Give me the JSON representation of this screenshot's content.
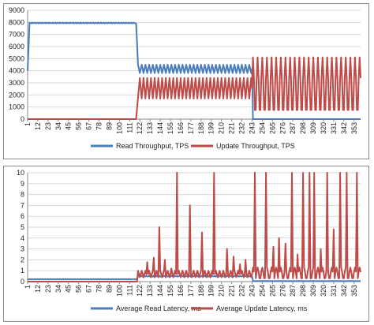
{
  "chart_data": [
    {
      "type": "line",
      "title": "",
      "xlabel": "",
      "ylabel": "",
      "x_tick_labels": [
        "1",
        "12",
        "23",
        "34",
        "45",
        "56",
        "67",
        "78",
        "89",
        "100",
        "111",
        "122",
        "133",
        "144",
        "155",
        "166",
        "177",
        "188",
        "199",
        "210",
        "221",
        "232",
        "243",
        "254",
        "265",
        "276",
        "287",
        "298",
        "309",
        "320",
        "331",
        "342",
        "353"
      ],
      "x_range": [
        1,
        360
      ],
      "ylim": [
        0,
        9000
      ],
      "y_ticks": [
        0,
        1000,
        2000,
        3000,
        4000,
        5000,
        6000,
        7000,
        8000,
        9000
      ],
      "grid": "horizontal",
      "legend_position": "bottom",
      "segments": [
        {
          "series": 0,
          "from": 1,
          "to": 3,
          "pattern": "ramp",
          "base": 4000,
          "peak": 7800
        },
        {
          "series": 0,
          "from": 3,
          "to": 118,
          "pattern": "flat",
          "value": 7950,
          "jitter": 40
        },
        {
          "series": 0,
          "from": 118,
          "to": 120,
          "pattern": "ramp",
          "base": 7900,
          "peak": 4700
        },
        {
          "series": 0,
          "from": 120,
          "to": 244,
          "pattern": "oscillate",
          "low": 3800,
          "high": 4500,
          "period": 4
        },
        {
          "series": 0,
          "from": 244,
          "to": 360,
          "pattern": "flat",
          "value": 0,
          "jitter": 0
        },
        {
          "series": 1,
          "from": 1,
          "to": 118,
          "pattern": "flat",
          "value": 0,
          "jitter": 0
        },
        {
          "series": 1,
          "from": 118,
          "to": 122,
          "pattern": "ramp",
          "base": 0,
          "peak": 3500
        },
        {
          "series": 1,
          "from": 122,
          "to": 244,
          "pattern": "oscillate",
          "low": 1700,
          "high": 3400,
          "period": 4
        },
        {
          "series": 1,
          "from": 244,
          "to": 360,
          "pattern": "oscillate",
          "low": 300,
          "high": 5100,
          "period": 5
        }
      ],
      "series": [
        {
          "name": "Read Throughput, TPS",
          "color": "#4a7ebb"
        },
        {
          "name": "Update Throughput, TPS",
          "color": "#be4b48"
        }
      ]
    },
    {
      "type": "line",
      "title": "",
      "xlabel": "",
      "ylabel": "",
      "x_tick_labels": [
        "1",
        "12",
        "23",
        "34",
        "45",
        "56",
        "67",
        "78",
        "89",
        "100",
        "111",
        "122",
        "133",
        "144",
        "155",
        "166",
        "177",
        "188",
        "199",
        "210",
        "221",
        "232",
        "243",
        "254",
        "265",
        "276",
        "287",
        "298",
        "309",
        "320",
        "331",
        "342",
        "353"
      ],
      "x_range": [
        1,
        360
      ],
      "ylim": [
        0,
        10
      ],
      "y_ticks": [
        0,
        1,
        2,
        3,
        4,
        5,
        6,
        7,
        8,
        9,
        10
      ],
      "grid": "horizontal",
      "legend_position": "bottom",
      "segments": [
        {
          "series": 0,
          "from": 1,
          "to": 120,
          "pattern": "flat",
          "value": 0.22,
          "jitter": 0.02
        },
        {
          "series": 0,
          "from": 120,
          "to": 244,
          "pattern": "flat",
          "value": 0.5,
          "jitter": 0.05
        },
        {
          "series": 0,
          "from": 244,
          "to": 360,
          "pattern": "flat",
          "value": 0.05,
          "jitter": 0.01
        },
        {
          "series": 1,
          "from": 1,
          "to": 120,
          "pattern": "flat",
          "value": 0,
          "jitter": 0
        },
        {
          "series": 1,
          "from": 120,
          "to": 244,
          "pattern": "oscillate",
          "low": 0.4,
          "high": 1.0,
          "period": 4
        },
        {
          "series": 1,
          "from": 244,
          "to": 360,
          "pattern": "oscillate",
          "low": 0.2,
          "high": 1.3,
          "period": 5
        }
      ],
      "spikes": [
        {
          "series": 1,
          "x": 130,
          "value": 1.8
        },
        {
          "series": 1,
          "x": 137,
          "value": 2.2
        },
        {
          "series": 1,
          "x": 143,
          "value": 5.0
        },
        {
          "series": 1,
          "x": 149,
          "value": 2.0
        },
        {
          "series": 1,
          "x": 156,
          "value": 1.2
        },
        {
          "series": 1,
          "x": 162,
          "value": 10
        },
        {
          "series": 1,
          "x": 176,
          "value": 7.0
        },
        {
          "series": 1,
          "x": 189,
          "value": 4.5
        },
        {
          "series": 1,
          "x": 202,
          "value": 10
        },
        {
          "series": 1,
          "x": 216,
          "value": 3.0
        },
        {
          "series": 1,
          "x": 223,
          "value": 2.3
        },
        {
          "series": 1,
          "x": 230,
          "value": 1.6
        },
        {
          "series": 1,
          "x": 236,
          "value": 2.0
        },
        {
          "series": 1,
          "x": 246,
          "value": 10
        },
        {
          "series": 1,
          "x": 258,
          "value": 10
        },
        {
          "series": 1,
          "x": 266,
          "value": 3.2
        },
        {
          "series": 1,
          "x": 272,
          "value": 4.0
        },
        {
          "series": 1,
          "x": 279,
          "value": 3.5
        },
        {
          "series": 1,
          "x": 286,
          "value": 10
        },
        {
          "series": 1,
          "x": 292,
          "value": 2.5
        },
        {
          "series": 1,
          "x": 298,
          "value": 10
        },
        {
          "series": 1,
          "x": 305,
          "value": 10
        },
        {
          "series": 1,
          "x": 310,
          "value": 10
        },
        {
          "series": 1,
          "x": 317,
          "value": 3.0
        },
        {
          "series": 1,
          "x": 324,
          "value": 10
        },
        {
          "series": 1,
          "x": 331,
          "value": 4.8
        },
        {
          "series": 1,
          "x": 338,
          "value": 10
        },
        {
          "series": 1,
          "x": 345,
          "value": 10
        },
        {
          "series": 1,
          "x": 356,
          "value": 10
        }
      ],
      "series": [
        {
          "name": "Average Read Latency, ms",
          "color": "#4a7ebb"
        },
        {
          "name": "Average Update Latency, ms",
          "color": "#be4b48"
        }
      ]
    }
  ]
}
